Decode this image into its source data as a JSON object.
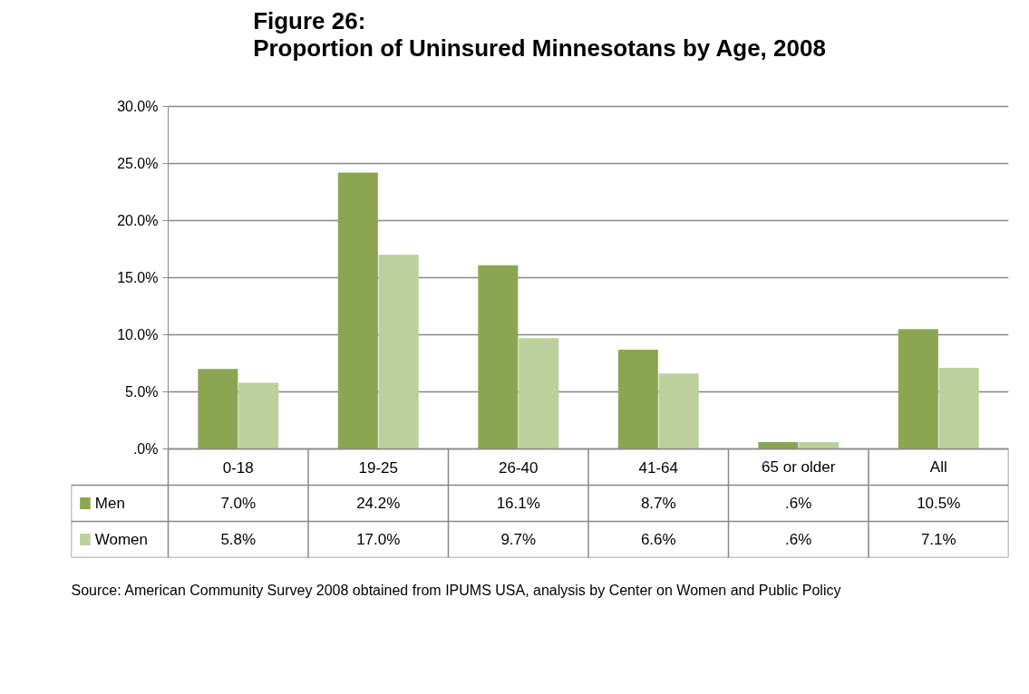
{
  "chart_data": {
    "type": "bar",
    "title": "Figure 26:\nProportion of Uninsured Minnesotans by Age, 2008",
    "categories": [
      "0-18",
      "19-25",
      "26-40",
      "41-64",
      "65 or older",
      "All"
    ],
    "series": [
      {
        "name": "Men",
        "color": "#8ba650",
        "values": [
          7.0,
          24.2,
          16.1,
          8.7,
          0.6,
          10.5
        ],
        "value_labels": [
          "7.0%",
          "24.2%",
          "16.1%",
          "8.7%",
          ".6%",
          "10.5%"
        ]
      },
      {
        "name": "Women",
        "color": "#bbd09b",
        "values": [
          5.8,
          17.0,
          9.7,
          6.6,
          0.6,
          7.1
        ],
        "value_labels": [
          "5.8%",
          "17.0%",
          "9.7%",
          "6.6%",
          ".6%",
          "7.1%"
        ]
      }
    ],
    "ylim": [
      0,
      30
    ],
    "yticks": [
      {
        "value": 0,
        "label": ".0%"
      },
      {
        "value": 5,
        "label": "5.0%"
      },
      {
        "value": 10,
        "label": "10.0%"
      },
      {
        "value": 15,
        "label": "15.0%"
      },
      {
        "value": 20,
        "label": "20.0%"
      },
      {
        "value": 25,
        "label": "25.0%"
      },
      {
        "value": 30,
        "label": "30.0%"
      }
    ],
    "grid": "y",
    "legend": "bottom",
    "annotations": [
      "Source:  American Community Survey 2008 obtained from IPUMS USA, analysis by Center on Women and Public Policy"
    ]
  }
}
